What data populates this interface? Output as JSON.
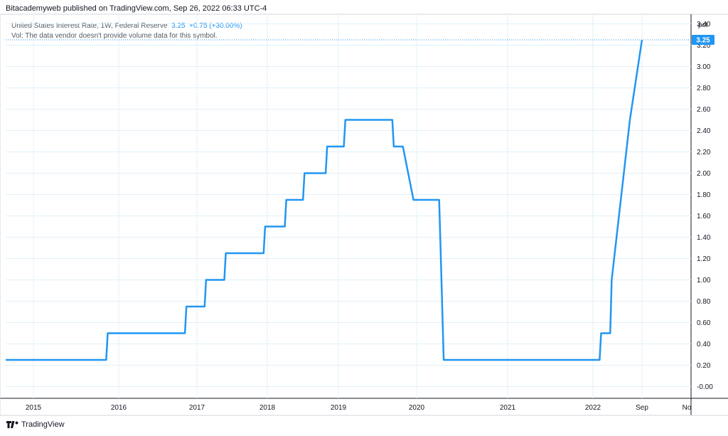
{
  "header": {
    "publisher_line": "Bitacademyweb published on TradingView.com, Sep 26, 2022 06:33 UTC-4"
  },
  "legend": {
    "symbol": "United States Interest Rate, 1W, Federal Reserve",
    "last": "3.25",
    "change": "+0.75 (+30.00%)",
    "volume_note": "Vol: The data vendor doesn't provide volume data for this symbol."
  },
  "footer": {
    "brand": "TradingView"
  },
  "colors": {
    "line": "#2196f3",
    "grid": "#e0f0f8",
    "axis": "#131722"
  },
  "chart_data": {
    "type": "line",
    "ylabel": "pct",
    "ylim": [
      -0.05,
      3.55
    ],
    "yticks": [
      "3.40",
      "3.20",
      "3.00",
      "2.80",
      "2.60",
      "2.40",
      "2.20",
      "2.00",
      "1.80",
      "1.60",
      "1.40",
      "1.20",
      "1.00",
      "0.80",
      "0.60",
      "0.40",
      "0.20",
      "-0.00"
    ],
    "xticks": [
      "2015",
      "2016",
      "2017",
      "2018",
      "2019",
      "2020",
      "2021",
      "2022",
      "Sep",
      "No"
    ],
    "last_price_label": "3.25",
    "series": [
      {
        "values": [
          [
            "2014-09",
            0.25
          ],
          [
            "2015-12-10",
            0.25
          ],
          [
            "2015-12-17",
            0.5
          ],
          [
            "2016-12-08",
            0.5
          ],
          [
            "2016-12-15",
            0.75
          ],
          [
            "2017-03-09",
            0.75
          ],
          [
            "2017-03-16",
            1.0
          ],
          [
            "2017-06-08",
            1.0
          ],
          [
            "2017-06-15",
            1.25
          ],
          [
            "2017-12-07",
            1.25
          ],
          [
            "2017-12-14",
            1.5
          ],
          [
            "2018-03-15",
            1.5
          ],
          [
            "2018-03-22",
            1.75
          ],
          [
            "2018-06-07",
            1.75
          ],
          [
            "2018-06-14",
            2.0
          ],
          [
            "2018-09-20",
            2.0
          ],
          [
            "2018-09-27",
            2.25
          ],
          [
            "2018-12-13",
            2.25
          ],
          [
            "2018-12-20",
            2.5
          ],
          [
            "2019-07-25",
            2.5
          ],
          [
            "2019-08-01",
            2.25
          ],
          [
            "2019-09-12",
            2.25
          ],
          [
            "2019-10-31",
            1.75
          ],
          [
            "2020-02-27",
            1.75
          ],
          [
            "2020-03-05",
            1.25
          ],
          [
            "2020-03-19",
            0.25
          ],
          [
            "2022-03-10",
            0.25
          ],
          [
            "2022-03-17",
            0.5
          ],
          [
            "2022-04-28",
            0.5
          ],
          [
            "2022-05-05",
            1.0
          ],
          [
            "2022-06-16",
            1.75
          ],
          [
            "2022-07-28",
            2.5
          ],
          [
            "2022-09-22",
            3.25
          ]
        ]
      }
    ]
  }
}
